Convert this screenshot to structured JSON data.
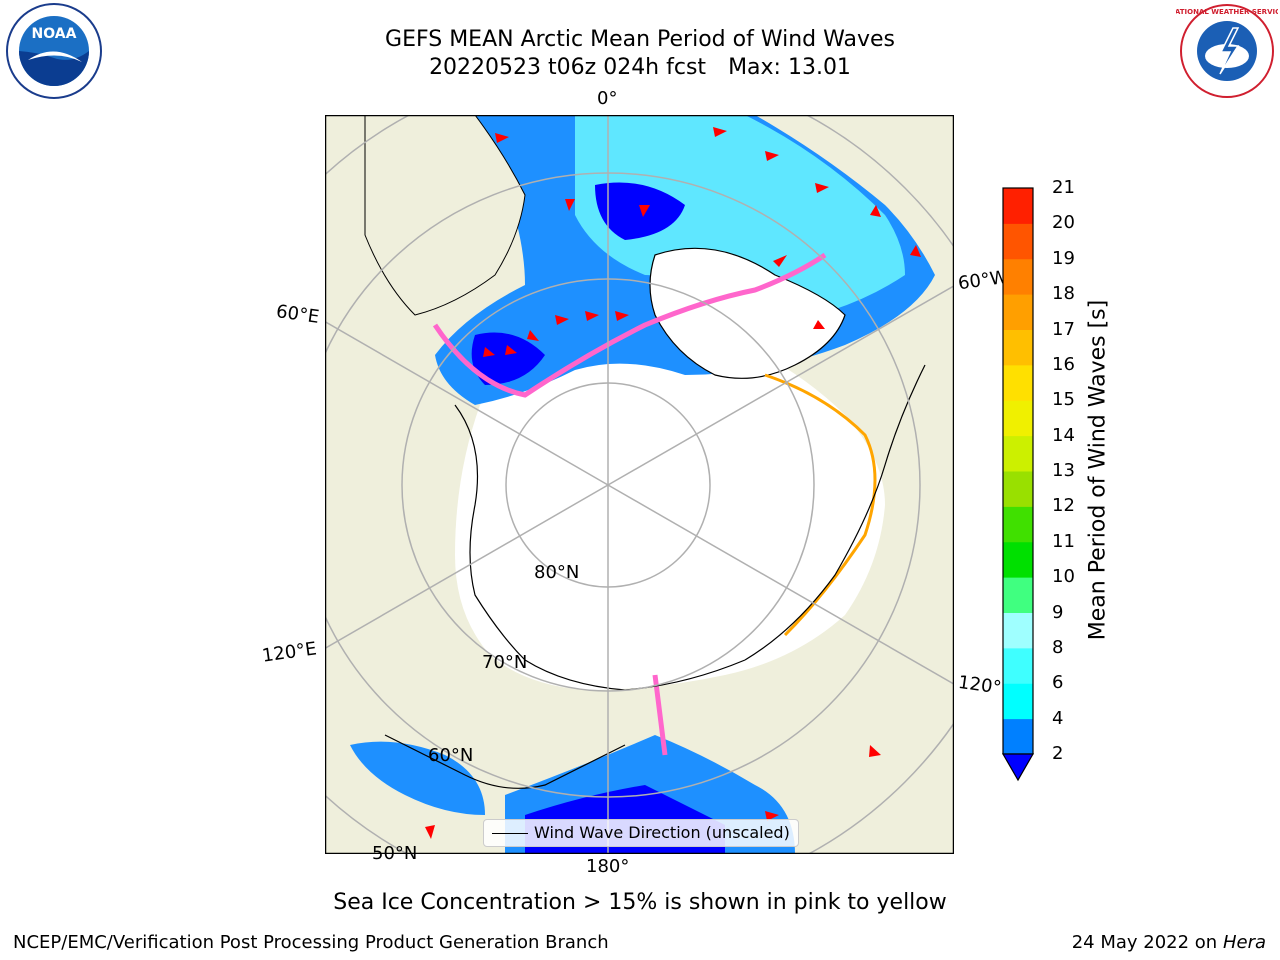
{
  "title": {
    "line1": "GEFS MEAN Arctic Mean Period of Wind Waves",
    "line2_date": "20220523 t06z 024h fcst",
    "line2_max": "Max: 13.01"
  },
  "map": {
    "projection": "north polar stereographic",
    "longitude_labels": {
      "top": "0°",
      "left_upper": "60°E",
      "right_upper": "60°W",
      "left_lower": "120°E",
      "right_lower": "120°W",
      "bottom": "180°"
    },
    "latitude_labels": {
      "lat80": "80°N",
      "lat70": "70°N",
      "lat60": "60°N",
      "lat50": "50°N"
    },
    "legend": "Wind Wave Direction (unscaled)",
    "colors": {
      "land": "#efefdc",
      "ocean_missing": "#ffffff",
      "gridline": "#b0b0b0",
      "arrow": "#ff0000"
    }
  },
  "colorbar": {
    "label": "Mean Period of Wind Waves [s]",
    "ticks": [
      "2",
      "4",
      "6",
      "8",
      "9",
      "10",
      "11",
      "12",
      "13",
      "14",
      "15",
      "16",
      "17",
      "18",
      "19",
      "20",
      "21"
    ],
    "colors": [
      "#0000ff",
      "#0080ff",
      "#00ffff",
      "#3fffff",
      "#9fffff",
      "#40ff80",
      "#00e000",
      "#40e000",
      "#99e000",
      "#ccf000",
      "#f0f000",
      "#ffe000",
      "#ffbf00",
      "#ff9f00",
      "#ff8000",
      "#ff5500",
      "#ff2000",
      "#ff0000"
    ],
    "extend": "min"
  },
  "caption": "Sea Ice Concentration > 15% is shown in pink to yellow",
  "footer": {
    "left": "NCEP/EMC/Verification Post Processing Product Generation Branch",
    "right_date": "24 May 2022 on",
    "right_host": "Hera"
  },
  "logos": {
    "left": "NOAA",
    "right": "NATIONAL WEATHER SERVICE"
  }
}
